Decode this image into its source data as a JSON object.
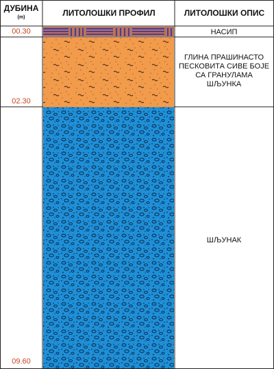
{
  "header": {
    "depth_label": "ДУБИНА",
    "depth_unit": "(m)",
    "profile_label": "ЛИТОЛОШКИ ПРОФИЛ",
    "description_label": "ЛИТОЛОШКИ ОПИС"
  },
  "layers": [
    {
      "bottom_depth": "00.30",
      "description": "НАСИП",
      "color": "#b8735a"
    },
    {
      "bottom_depth": "02.30",
      "description": "ГЛИНА ПРАШИНАСТО ПЕСКОВИТА СИВЕ БОЈЕ СА ГРАНУЛАМА ШЉУНКА",
      "color": "#f29b4b"
    },
    {
      "bottom_depth": "09.60",
      "description": "ШЉУНАК",
      "color": "#1e8fd8"
    }
  ],
  "colors": {
    "fill_stripe": "#2a2aa8",
    "depth_text": "#c8451f"
  }
}
